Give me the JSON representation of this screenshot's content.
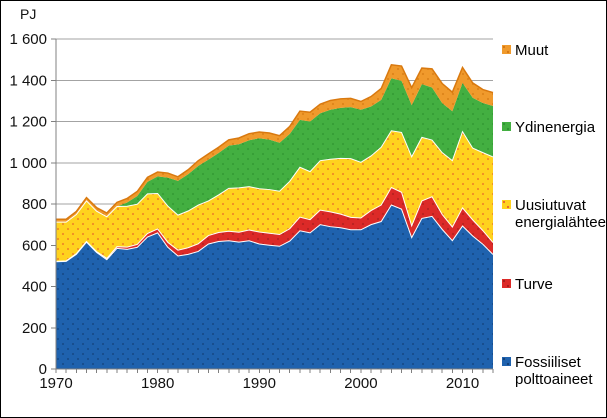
{
  "figure": {
    "unit_label": "PJ"
  },
  "chart_data": {
    "type": "area",
    "stacked": true,
    "title": "",
    "xlabel": "",
    "ylabel": "PJ",
    "ylim": [
      0,
      1600
    ],
    "x_range": [
      1970,
      2013
    ],
    "grid": "horizontal",
    "legend_position": "right",
    "x": [
      1970,
      1971,
      1972,
      1973,
      1974,
      1975,
      1976,
      1977,
      1978,
      1979,
      1980,
      1981,
      1982,
      1983,
      1984,
      1985,
      1986,
      1987,
      1988,
      1989,
      1990,
      1991,
      1992,
      1993,
      1994,
      1995,
      1996,
      1997,
      1998,
      1999,
      2000,
      2001,
      2002,
      2003,
      2004,
      2005,
      2006,
      2007,
      2008,
      2009,
      2010,
      2011,
      2012,
      2013
    ],
    "y_ticks": [
      {
        "v": 0,
        "label": "0"
      },
      {
        "v": 200,
        "label": "200"
      },
      {
        "v": 400,
        "label": "400"
      },
      {
        "v": 600,
        "label": "600"
      },
      {
        "v": 800,
        "label": "800"
      },
      {
        "v": 1000,
        "label": "1 000"
      },
      {
        "v": 1200,
        "label": "1 200"
      },
      {
        "v": 1400,
        "label": "1 400"
      },
      {
        "v": 1600,
        "label": "1 600"
      }
    ],
    "x_ticks": [
      {
        "v": 1970,
        "label": "1970"
      },
      {
        "v": 1980,
        "label": "1980"
      },
      {
        "v": 1990,
        "label": "1990"
      },
      {
        "v": 2000,
        "label": "2000"
      },
      {
        "v": 2010,
        "label": "2010"
      }
    ],
    "series": [
      {
        "id": "fossil",
        "name": "Fossiiliset polttoaineet",
        "color": "#1F62AE",
        "dot_color": "#123F78",
        "top_edge": "#ffffff",
        "values": [
          520,
          522,
          556,
          615,
          565,
          530,
          585,
          580,
          590,
          640,
          660,
          590,
          548,
          556,
          570,
          606,
          618,
          622,
          615,
          622,
          606,
          600,
          595,
          620,
          670,
          660,
          700,
          690,
          685,
          675,
          675,
          700,
          715,
          795,
          775,
          637,
          730,
          740,
          677,
          622,
          693,
          645,
          605,
          555
        ]
      },
      {
        "id": "peat",
        "name": "Turve",
        "color": "#DC2A28",
        "dot_color": "#A31C1C",
        "top_edge": "#ffffff",
        "values": [
          2,
          2,
          3,
          3,
          4,
          6,
          8,
          11,
          14,
          17,
          19,
          24,
          28,
          32,
          37,
          41,
          44,
          46,
          48,
          52,
          58,
          58,
          57,
          60,
          66,
          64,
          70,
          72,
          66,
          60,
          57,
          68,
          80,
          85,
          82,
          57,
          85,
          95,
          72,
          66,
          88,
          78,
          66,
          58
        ]
      },
      {
        "id": "renewables",
        "name": "Uusiutuvat energialähteet",
        "color": "#FFD21E",
        "dot_color": "#E8642A",
        "top_edge": "#ffffff",
        "values": [
          190,
          188,
          190,
          197,
          196,
          202,
          195,
          198,
          195,
          192,
          172,
          176,
          170,
          178,
          188,
          168,
          182,
          208,
          215,
          210,
          210,
          212,
          210,
          230,
          242,
          233,
          240,
          255,
          270,
          285,
          270,
          265,
          280,
          275,
          290,
          335,
          308,
          275,
          300,
          322,
          370,
          348,
          378,
          415
        ]
      },
      {
        "id": "nuclear",
        "name": "Ydinenergia",
        "color": "#43AF41",
        "dot_color": "#2E9230",
        "top_edge": null,
        "values": [
          0,
          0,
          0,
          0,
          0,
          0,
          0,
          18,
          40,
          58,
          83,
          138,
          166,
          178,
          190,
          200,
          203,
          207,
          212,
          225,
          245,
          242,
          235,
          230,
          230,
          243,
          230,
          240,
          245,
          250,
          255,
          240,
          230,
          255,
          250,
          250,
          258,
          255,
          240,
          240,
          236,
          244,
          241,
          247
        ]
      },
      {
        "id": "others",
        "name": "Muut",
        "color": "#F09A2C",
        "dot_color": "#D47712",
        "top_edge": "#D9790F",
        "values": [
          14,
          14,
          15,
          16,
          17,
          18,
          20,
          20,
          22,
          22,
          21,
          22,
          20,
          22,
          25,
          28,
          28,
          28,
          30,
          32,
          30,
          32,
          34,
          36,
          42,
          45,
          44,
          45,
          44,
          42,
          40,
          48,
          55,
          65,
          72,
          85,
          78,
          90,
          95,
          92,
          75,
          72,
          65,
          65
        ]
      }
    ]
  }
}
